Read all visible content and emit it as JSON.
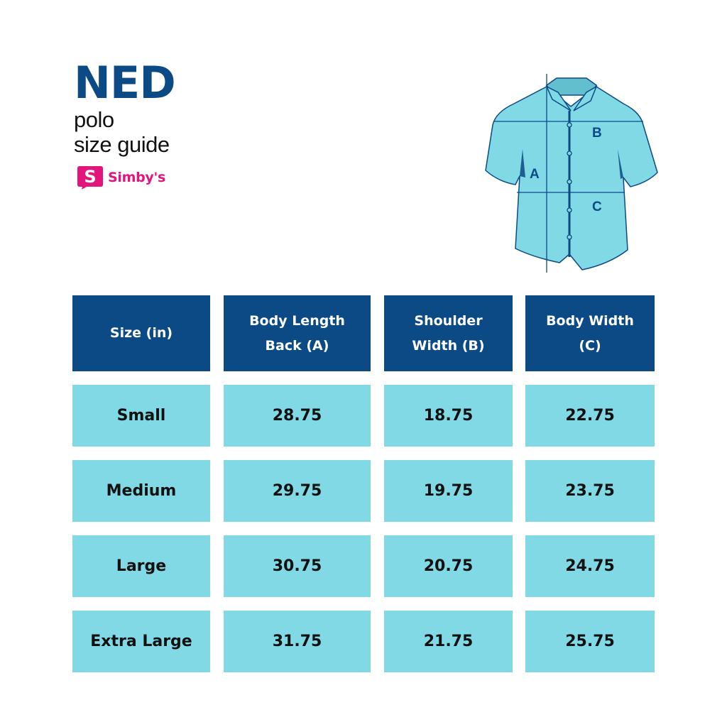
{
  "brand": {
    "title": "NED",
    "subtitle_line1": "polo",
    "subtitle_line2": "size guide",
    "logo_name": "Simby's",
    "logo_letter": "S"
  },
  "colors": {
    "primary_dark_blue": "#0b4a85",
    "light_aqua": "#80d9e4",
    "brand_pink": "#e4147d"
  },
  "diagram": {
    "labels": {
      "a": "A",
      "b": "B",
      "c": "C"
    }
  },
  "table": {
    "headers": [
      "Size (in)",
      "Body Length\nBack (A)",
      "Shoulder\nWidth (B)",
      "Body Width\n(C)"
    ],
    "rows": [
      [
        "Small",
        "28.75",
        "18.75",
        "22.75"
      ],
      [
        "Medium",
        "29.75",
        "19.75",
        "23.75"
      ],
      [
        "Large",
        "30.75",
        "20.75",
        "24.75"
      ],
      [
        "Extra Large",
        "31.75",
        "21.75",
        "25.75"
      ]
    ]
  }
}
